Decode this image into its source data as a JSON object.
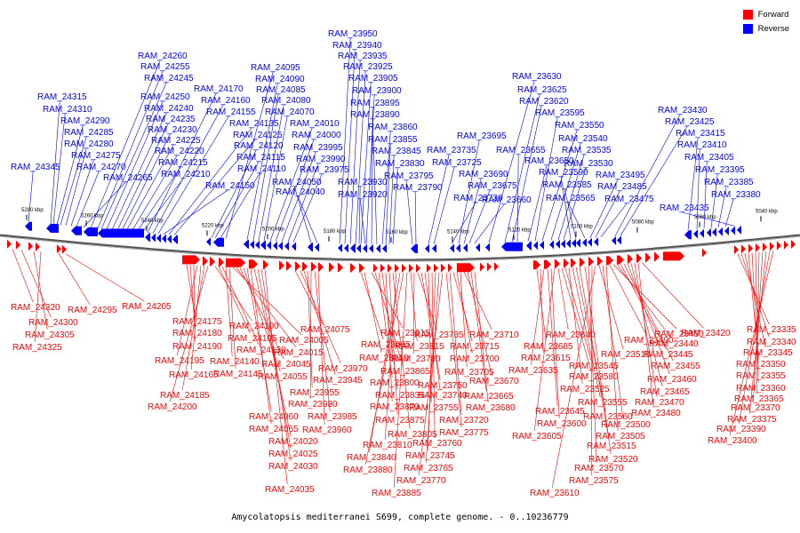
{
  "legend": {
    "forward_label": "Forward",
    "reverse_label": "Reverse",
    "forward_color": "#ff0000",
    "reverse_color": "#0000ff"
  },
  "caption": "Amycolatopsis mediterranei S699, complete genome. - 0..10236779",
  "scale_ticks": [
    "5280 kbp",
    "5260 kbp",
    "5240 kbp",
    "5220 kbp",
    "5200 kbp",
    "5180 kbp",
    "5160 kbp",
    "5140 kbp",
    "5120 kbp",
    "5100 kbp",
    "5080 kbp",
    "5060 kbp",
    "5040 kbp"
  ],
  "reverse_labels": [
    "RAM_24345",
    "RAM_24315",
    "RAM_24310",
    "RAM_24290",
    "RAM_24285",
    "RAM_24280",
    "RAM_24275",
    "RAM_24270",
    "RAM_24265",
    "RAM_24260",
    "RAM_24255",
    "RAM_24245",
    "RAM_24250",
    "RAM_24240",
    "RAM_24235",
    "RAM_24230",
    "RAM_24225",
    "RAM_24220",
    "RAM_24215",
    "RAM_24210",
    "RAM_24170",
    "RAM_24160",
    "RAM_24155",
    "RAM_24150",
    "RAM_24135",
    "RAM_24125",
    "RAM_24120",
    "RAM_24115",
    "RAM_24110",
    "RAM_24095",
    "RAM_24090",
    "RAM_24085",
    "RAM_24080",
    "RAM_24070",
    "RAM_24010",
    "RAM_24000",
    "RAM_23995",
    "RAM_23990",
    "RAM_23975",
    "RAM_24050",
    "RAM_24040",
    "RAM_23950",
    "RAM_23940",
    "RAM_23935",
    "RAM_23925",
    "RAM_23905",
    "RAM_23900",
    "RAM_23895",
    "RAM_23890",
    "RAM_23930",
    "RAM_23920",
    "RAM_23860",
    "RAM_23855",
    "RAM_23845",
    "RAM_23830",
    "RAM_23795",
    "RAM_23790",
    "RAM_23735",
    "RAM_23725",
    "RAM_23730",
    "RAM_23695",
    "RAM_23690",
    "RAM_23675",
    "RAM_23660",
    "RAM_23630",
    "RAM_23625",
    "RAM_23620",
    "RAM_23655",
    "RAM_23650",
    "RAM_23595",
    "RAM_23550",
    "RAM_23540",
    "RAM_23535",
    "RAM_23530",
    "RAM_23590",
    "RAM_23585",
    "RAM_23565",
    "RAM_23495",
    "RAM_23485",
    "RAM_23475",
    "RAM_23430",
    "RAM_23425",
    "RAM_23415",
    "RAM_23410",
    "RAM_23405",
    "RAM_23395",
    "RAM_23385",
    "RAM_23380",
    "RAM_23435"
  ],
  "forward_labels": [
    "RAM_24320",
    "RAM_24300",
    "RAM_24305",
    "RAM_24325",
    "RAM_24295",
    "RAM_24205",
    "RAM_24175",
    "RAM_24180",
    "RAM_24190",
    "RAM_24195",
    "RAM_24165",
    "RAM_24185",
    "RAM_24200",
    "RAM_24100",
    "RAM_24105",
    "RAM_24130",
    "RAM_24140",
    "RAM_24145",
    "RAM_24005",
    "RAM_24015",
    "RAM_24045",
    "RAM_24055",
    "RAM_24060",
    "RAM_24065",
    "RAM_24020",
    "RAM_24025",
    "RAM_24030",
    "RAM_24035",
    "RAM_24075",
    "RAM_23970",
    "RAM_23945",
    "RAM_23955",
    "RAM_23980",
    "RAM_23985",
    "RAM_23960",
    "RAM_23965",
    "RAM_23910",
    "RAM_23915",
    "RAM_23865",
    "RAM_23800",
    "RAM_23835",
    "RAM_23870",
    "RAM_23875",
    "RAM_23805",
    "RAM_23810",
    "RAM_23840",
    "RAM_23880",
    "RAM_23885",
    "RAM_23815",
    "RAM_23780",
    "RAM_23785",
    "RAM_23750",
    "RAM_23740",
    "RAM_23755",
    "RAM_23760",
    "RAM_23745",
    "RAM_23765",
    "RAM_23770",
    "RAM_23775",
    "RAM_23720",
    "RAM_23715",
    "RAM_23700",
    "RAM_23705",
    "RAM_23710",
    "RAM_23670",
    "RAM_23665",
    "RAM_23680",
    "RAM_23685",
    "RAM_23615",
    "RAM_23635",
    "RAM_23645",
    "RAM_23600",
    "RAM_23605",
    "RAM_23640",
    "RAM_23580",
    "RAM_23545",
    "RAM_23525",
    "RAM_23555",
    "RAM_23560",
    "RAM_23515",
    "RAM_23520",
    "RAM_23570",
    "RAM_23575",
    "RAM_23610",
    "RAM_23510",
    "RAM_23500",
    "RAM_23505",
    "RAM_23490",
    "RAM_23450",
    "RAM_23440",
    "RAM_23445",
    "RAM_23455",
    "RAM_23460",
    "RAM_23465",
    "RAM_23470",
    "RAM_23480",
    "RAM_23420",
    "RAM_23335",
    "RAM_23340",
    "RAM_23345",
    "RAM_23350",
    "RAM_23355",
    "RAM_23360",
    "RAM_23365",
    "RAM_23370",
    "RAM_23375",
    "RAM_23390",
    "RAM_23400"
  ]
}
